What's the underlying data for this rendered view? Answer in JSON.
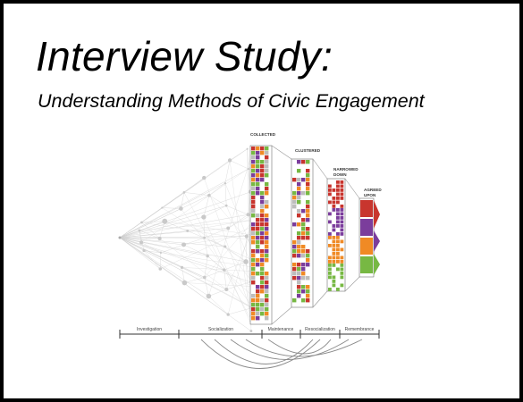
{
  "slide": {
    "title": "Interview Study:",
    "subtitle": "Understanding Methods of Civic Engagement"
  },
  "diagram": {
    "stage_labels": {
      "collected": "COLLECTED",
      "clustered": "CLUSTERED",
      "narrowed_line1": "NARROWED",
      "narrowed_line2": "DOWN",
      "agreed_line1": "AGREED",
      "agreed_line2": "UPON"
    },
    "timeline": [
      "Investigation",
      "Socialization",
      "Maintenance",
      "Resocialization",
      "Remembrance"
    ],
    "palette": {
      "red": "#c8352e",
      "green": "#77b843",
      "purple": "#7b3d9c",
      "orange": "#f08a25",
      "gray": "#bdbdbd",
      "line": "#000000"
    }
  }
}
